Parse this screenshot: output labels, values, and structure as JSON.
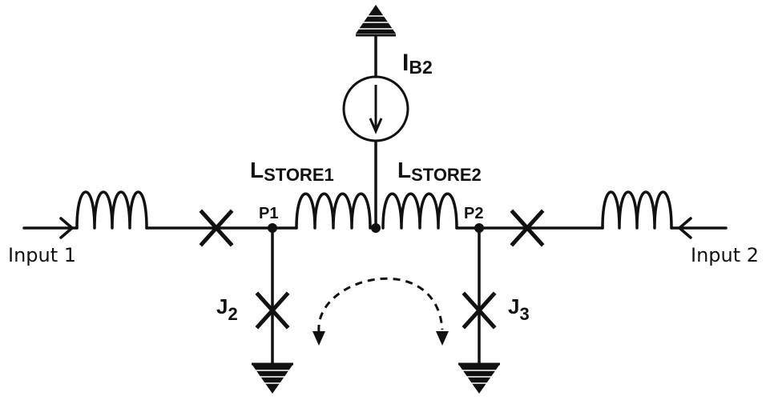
{
  "labels": {
    "bias_current_main": "I",
    "bias_current_sub": "B2",
    "l_store1_main": "L",
    "l_store1_sub": "STORE1",
    "l_store2_main": "L",
    "l_store2_sub": "STORE2",
    "node_p1": "P1",
    "node_p2": "P2",
    "junction_j2_main": "J",
    "junction_j2_sub": "2",
    "junction_j3_main": "J",
    "junction_j3_sub": "3",
    "input_1": "Input 1",
    "input_2": "Input 2"
  },
  "colors": {
    "ink": "#111111",
    "background": "#ffffff"
  }
}
